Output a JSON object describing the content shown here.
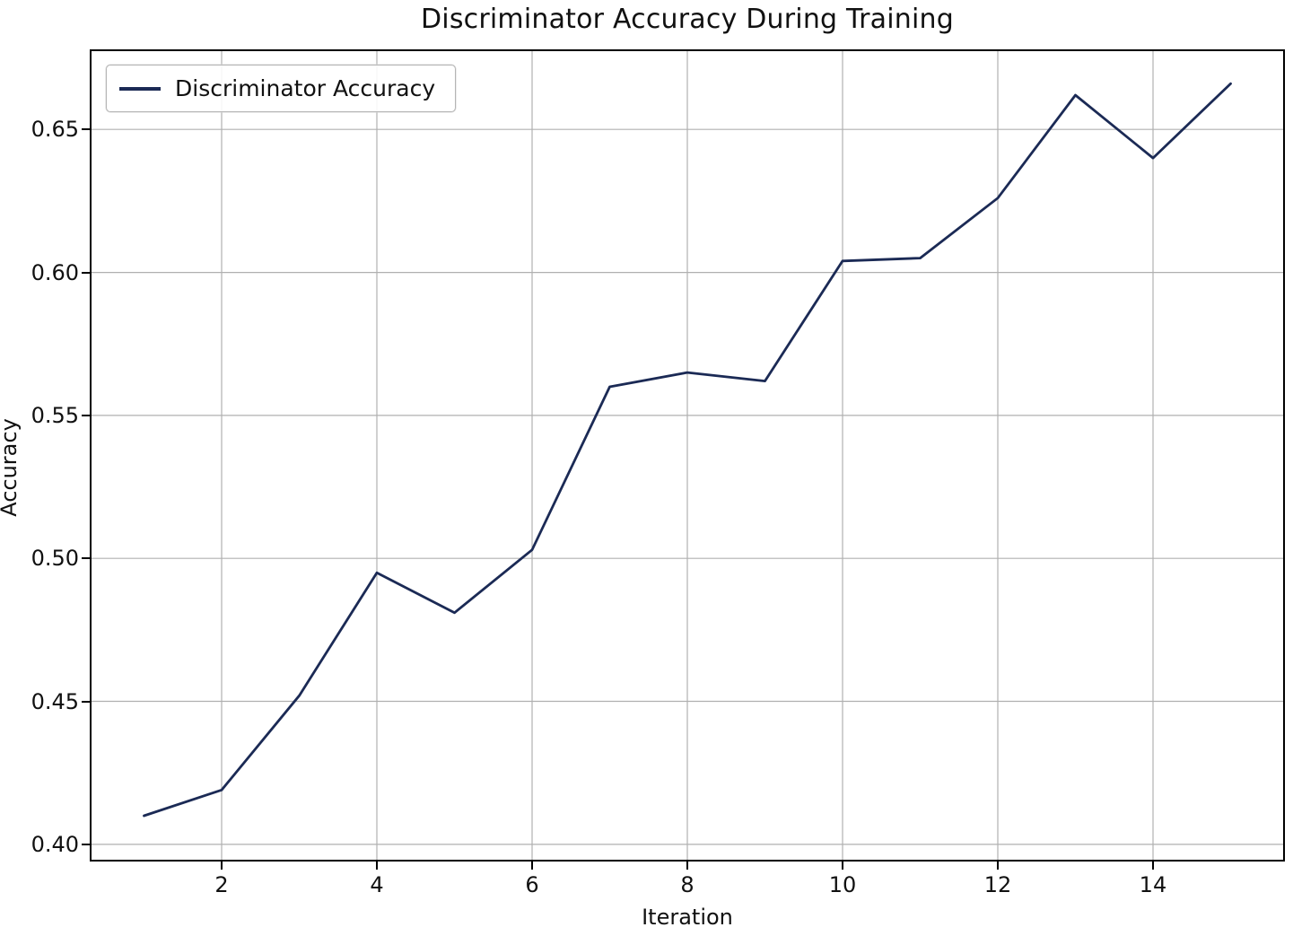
{
  "chart_data": {
    "type": "line",
    "title": "Discriminator Accuracy During Training",
    "xlabel": "Iteration",
    "ylabel": "Accuracy",
    "series": [
      {
        "name": "Discriminator Accuracy",
        "x": [
          1,
          2,
          3,
          4,
          5,
          6,
          7,
          8,
          9,
          10,
          11,
          12,
          13,
          14,
          15
        ],
        "y": [
          0.41,
          0.419,
          0.452,
          0.495,
          0.481,
          0.503,
          0.56,
          0.565,
          0.562,
          0.604,
          0.605,
          0.626,
          0.662,
          0.64,
          0.666
        ]
      }
    ],
    "xlim": [
      0.3,
      15.7
    ],
    "ylim": [
      0.394,
      0.678
    ],
    "xticks": [
      2,
      4,
      6,
      8,
      10,
      12,
      14
    ],
    "xtick_labels": [
      "2",
      "4",
      "6",
      "8",
      "10",
      "12",
      "14"
    ],
    "yticks": [
      0.4,
      0.45,
      0.5,
      0.55,
      0.6,
      0.65
    ],
    "ytick_labels": [
      "0.40",
      "0.45",
      "0.50",
      "0.55",
      "0.60",
      "0.65"
    ],
    "grid": true,
    "legend_position": "upper left",
    "line_color": "#1b2a55",
    "grid_color": "#b0b0b0",
    "border_color": "#000000",
    "background_color": "#ffffff"
  }
}
